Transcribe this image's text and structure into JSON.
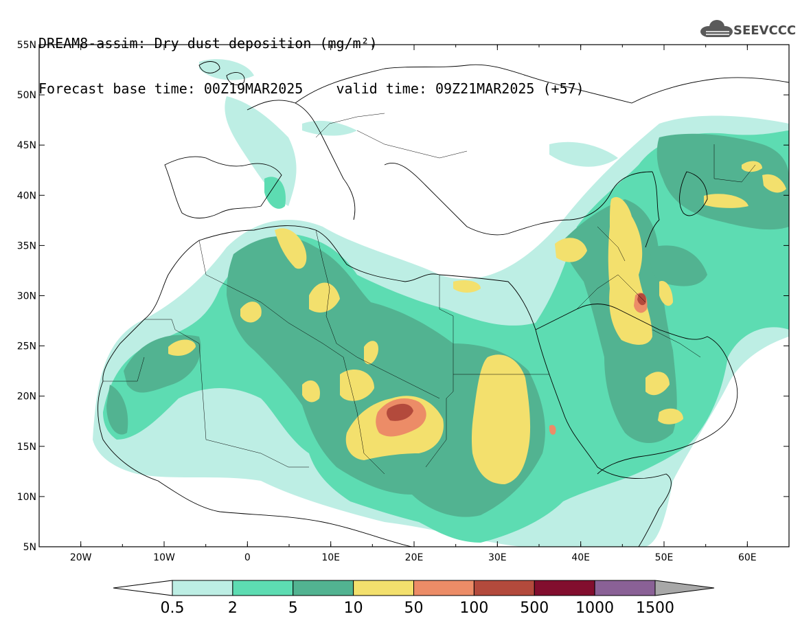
{
  "header": {
    "title_line1": "DREAM8-assim: Dry dust deposition (mg/m²)",
    "title_line2": "Forecast base time: 00Z19MAR2025    valid time: 09Z21MAR2025 (+57)",
    "logo_text": "SEEVCCC"
  },
  "map": {
    "lon_range": [
      -25,
      65
    ],
    "lat_range": [
      5,
      55
    ],
    "lon_ticks": [
      "20W",
      "10W",
      "0",
      "10E",
      "20E",
      "30E",
      "40E",
      "50E",
      "60E"
    ],
    "lat_ticks": [
      "55N",
      "50N",
      "45N",
      "40N",
      "35N",
      "30N",
      "25N",
      "20N",
      "15N",
      "10N",
      "5N"
    ],
    "grid": false
  },
  "colorbar": {
    "labels": [
      "0.5",
      "2",
      "5",
      "10",
      "50",
      "100",
      "500",
      "1000",
      "1500"
    ],
    "colors": [
      "#ffffff",
      "#bdeee4",
      "#5ddcb2",
      "#52b391",
      "#f3e06d",
      "#ec8c67",
      "#b34a3c",
      "#820e2e",
      "#8a6196",
      "#a8a8a8"
    ]
  }
}
